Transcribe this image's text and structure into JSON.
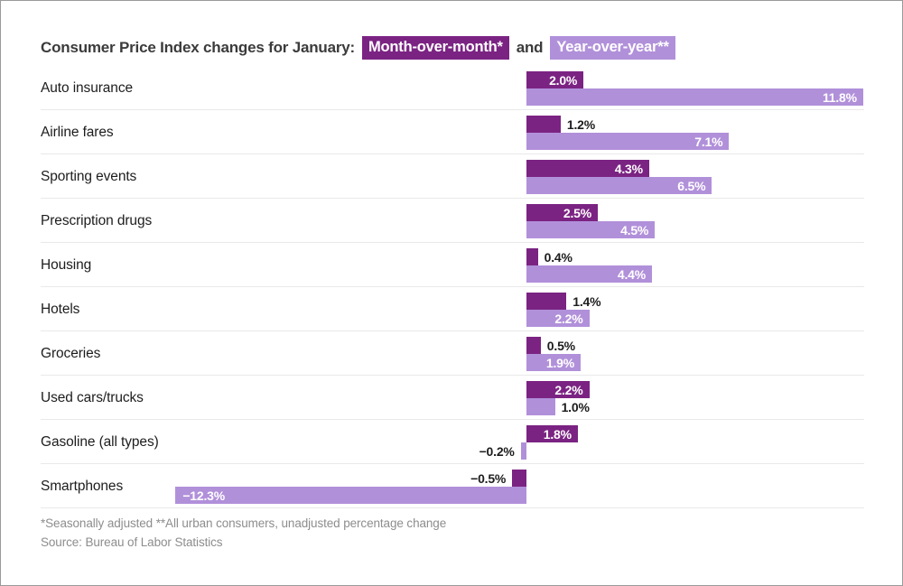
{
  "title": "Consumer Price Index changes for January:",
  "title_connector": "and",
  "footnote": "*Seasonally adjusted **All urban consumers, unadjusted percentage change",
  "source": "Source: Bureau of Labor Statistics",
  "colors": {
    "mom_bar": "#7b2383",
    "yoy_bar": "#b190da",
    "separator": "#e9e9e9",
    "title_text": "#3b3b3b",
    "label_text": "#1d1d1d",
    "footnote_text": "#8d8d8d",
    "inside_label_text": "#ffffff"
  },
  "chart_data": {
    "type": "bar",
    "orientation": "horizontal",
    "title": "Consumer Price Index changes for January: Month-over-month* and Year-over-year**",
    "xlabel": "",
    "ylabel": "",
    "xlim": [
      -17,
      11.8
    ],
    "grid": false,
    "legend_position": "in-title",
    "categories": [
      "Auto insurance",
      "Airline fares",
      "Sporting events",
      "Prescription drugs",
      "Housing",
      "Hotels",
      "Groceries",
      "Used cars/trucks",
      "Gasoline (all types)",
      "Smartphones"
    ],
    "series": [
      {
        "name": "Month-over-month*",
        "color": "#7b2383",
        "values": [
          2.0,
          1.2,
          4.3,
          2.5,
          0.4,
          1.4,
          0.5,
          2.2,
          1.8,
          -0.5
        ],
        "labels": [
          "2.0%",
          "1.2%",
          "4.3%",
          "2.5%",
          "0.4%",
          "1.4%",
          "0.5%",
          "2.2%",
          "1.8%",
          "−0.5%"
        ]
      },
      {
        "name": "Year-over-year**",
        "color": "#b190da",
        "values": [
          11.8,
          7.1,
          6.5,
          4.5,
          4.4,
          2.2,
          1.9,
          1.0,
          -0.2,
          -12.3
        ],
        "labels": [
          "11.8%",
          "7.1%",
          "6.5%",
          "4.5%",
          "4.4%",
          "2.2%",
          "1.9%",
          "1.0%",
          "−0.2%",
          "−12.3%"
        ]
      }
    ]
  }
}
